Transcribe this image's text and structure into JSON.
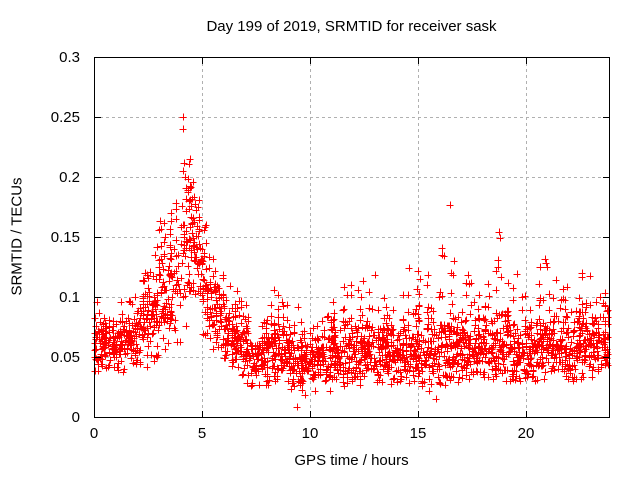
{
  "chart_data": {
    "type": "scatter",
    "title": "Day 199 of 2019, SRMTID for receiver sask",
    "xlabel": "GPS time / hours",
    "ylabel": "SRMTID / TECUs",
    "xlim": [
      0,
      23.84
    ],
    "ylim": [
      0,
      0.3
    ],
    "xticks": [
      {
        "v": 0,
        "label": "0"
      },
      {
        "v": 5,
        "label": "5"
      },
      {
        "v": 10,
        "label": "10"
      },
      {
        "v": 15,
        "label": "15"
      },
      {
        "v": 20,
        "label": "20"
      }
    ],
    "yticks": [
      {
        "v": 0,
        "label": "0"
      },
      {
        "v": 0.05,
        "label": "0.05"
      },
      {
        "v": 0.1,
        "label": "0.1"
      },
      {
        "v": 0.15,
        "label": "0.15"
      },
      {
        "v": 0.2,
        "label": "0.2"
      },
      {
        "v": 0.25,
        "label": "0.25"
      },
      {
        "v": 0.3,
        "label": "0.3"
      }
    ],
    "grid": true,
    "legend": null,
    "marker": {
      "shape": "plus",
      "size": 7,
      "color": "#ff0000"
    },
    "colors": {
      "background": "#ffffff",
      "border": "#000000",
      "grid": "#b0b0b0",
      "text": "#000000",
      "marker": "#ff0000"
    },
    "description": "Dense 30-second SRMTID scatter: band ~0.06 TECU at 0h rising to a sharp peak ~0.14-0.25 TECU near 4-5h GPS time, decaying to a quiet band 0.04-0.07 TECU between 7h and 15h, mild activity 0.05-0.13 TECU from 15h to 24h with isolated spikes.",
    "envelope_bins_halfhour": [
      [
        0.0,
        0.06,
        0.012,
        0.095,
        0.035
      ],
      [
        0.5,
        0.058,
        0.011,
        0.092,
        0.036
      ],
      [
        1.0,
        0.06,
        0.012,
        0.096,
        0.036
      ],
      [
        1.5,
        0.064,
        0.013,
        0.108,
        0.038
      ],
      [
        2.0,
        0.072,
        0.015,
        0.125,
        0.04
      ],
      [
        2.5,
        0.083,
        0.017,
        0.14,
        0.045
      ],
      [
        3.0,
        0.096,
        0.02,
        0.165,
        0.05
      ],
      [
        3.5,
        0.108,
        0.022,
        0.178,
        0.058
      ],
      [
        4.0,
        0.136,
        0.028,
        0.215,
        0.07
      ],
      [
        4.5,
        0.136,
        0.024,
        0.196,
        0.078
      ],
      [
        5.0,
        0.104,
        0.022,
        0.158,
        0.058
      ],
      [
        5.5,
        0.082,
        0.018,
        0.128,
        0.046
      ],
      [
        6.0,
        0.067,
        0.015,
        0.11,
        0.038
      ],
      [
        6.5,
        0.057,
        0.013,
        0.098,
        0.03
      ],
      [
        7.0,
        0.05,
        0.012,
        0.09,
        0.022
      ],
      [
        7.5,
        0.048,
        0.011,
        0.086,
        0.024
      ],
      [
        8.0,
        0.052,
        0.013,
        0.1,
        0.026
      ],
      [
        8.5,
        0.054,
        0.013,
        0.104,
        0.028
      ],
      [
        9.0,
        0.047,
        0.012,
        0.094,
        0.018
      ],
      [
        9.5,
        0.042,
        0.011,
        0.08,
        0.008
      ],
      [
        10.0,
        0.044,
        0.01,
        0.08,
        0.02
      ],
      [
        10.5,
        0.046,
        0.011,
        0.086,
        0.022
      ],
      [
        11.0,
        0.048,
        0.012,
        0.098,
        0.024
      ],
      [
        11.5,
        0.05,
        0.013,
        0.108,
        0.025
      ],
      [
        12.0,
        0.052,
        0.014,
        0.114,
        0.027
      ],
      [
        12.5,
        0.053,
        0.014,
        0.11,
        0.028
      ],
      [
        13.0,
        0.052,
        0.013,
        0.106,
        0.027
      ],
      [
        13.5,
        0.05,
        0.012,
        0.1,
        0.027
      ],
      [
        14.0,
        0.052,
        0.013,
        0.11,
        0.028
      ],
      [
        14.5,
        0.055,
        0.015,
        0.124,
        0.028
      ],
      [
        15.0,
        0.052,
        0.014,
        0.118,
        0.022
      ],
      [
        15.5,
        0.05,
        0.013,
        0.112,
        0.014
      ],
      [
        16.0,
        0.055,
        0.016,
        0.138,
        0.024
      ],
      [
        16.5,
        0.056,
        0.016,
        0.132,
        0.026
      ],
      [
        17.0,
        0.054,
        0.014,
        0.118,
        0.028
      ],
      [
        17.5,
        0.052,
        0.013,
        0.104,
        0.028
      ],
      [
        18.0,
        0.055,
        0.014,
        0.112,
        0.03
      ],
      [
        18.5,
        0.057,
        0.015,
        0.132,
        0.03
      ],
      [
        19.0,
        0.055,
        0.014,
        0.118,
        0.03
      ],
      [
        19.5,
        0.052,
        0.013,
        0.104,
        0.028
      ],
      [
        20.0,
        0.055,
        0.014,
        0.112,
        0.03
      ],
      [
        20.5,
        0.058,
        0.015,
        0.126,
        0.03
      ],
      [
        21.0,
        0.058,
        0.015,
        0.122,
        0.03
      ],
      [
        21.5,
        0.056,
        0.014,
        0.108,
        0.028
      ],
      [
        22.0,
        0.056,
        0.014,
        0.112,
        0.028
      ],
      [
        22.5,
        0.06,
        0.015,
        0.118,
        0.03
      ],
      [
        23.0,
        0.056,
        0.013,
        0.104,
        0.028
      ],
      [
        23.5,
        0.057,
        0.013,
        0.104,
        0.03
      ]
    ],
    "notable_points": [
      [
        0.15,
        0.096
      ],
      [
        2.9,
        0.142
      ],
      [
        3.05,
        0.163
      ],
      [
        3.1,
        0.157
      ],
      [
        3.3,
        0.15
      ],
      [
        4.12,
        0.25
      ],
      [
        4.12,
        0.24
      ],
      [
        4.15,
        0.212
      ],
      [
        4.1,
        0.205
      ],
      [
        4.22,
        0.2
      ],
      [
        4.35,
        0.198
      ],
      [
        4.5,
        0.192
      ],
      [
        5.2,
        0.16
      ],
      [
        6.6,
        0.105
      ],
      [
        7.05,
        0.093
      ],
      [
        8.35,
        0.106
      ],
      [
        8.5,
        0.102
      ],
      [
        9.4,
        0.008
      ],
      [
        11.9,
        0.11
      ],
      [
        12.45,
        0.113
      ],
      [
        13.0,
        0.118
      ],
      [
        14.6,
        0.124
      ],
      [
        15.85,
        0.015
      ],
      [
        16.1,
        0.141
      ],
      [
        16.2,
        0.134
      ],
      [
        16.5,
        0.177
      ],
      [
        16.65,
        0.13
      ],
      [
        17.3,
        0.118
      ],
      [
        17.35,
        0.111
      ],
      [
        18.75,
        0.154
      ],
      [
        18.78,
        0.149
      ],
      [
        18.7,
        0.131
      ],
      [
        18.72,
        0.125
      ],
      [
        19.6,
        0.119
      ],
      [
        20.9,
        0.132
      ],
      [
        20.92,
        0.128
      ],
      [
        20.95,
        0.125
      ],
      [
        22.6,
        0.12
      ]
    ],
    "points_per_bin": 50,
    "seed": 199
  }
}
